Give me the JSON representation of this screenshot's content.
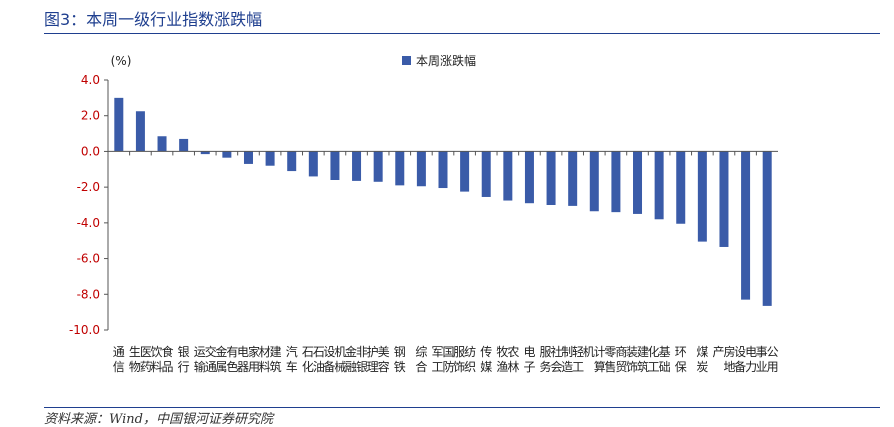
{
  "figure": {
    "title": "图3：本周一级行业指数涨跌幅",
    "source": "资料来源：Wind，中国银河证券研究院"
  },
  "colors": {
    "bar": "#3a5ba8",
    "title": "#1f3f8f",
    "axis_text": "#c00000"
  },
  "chart_data": {
    "type": "bar",
    "unit_label": "(%)",
    "legend": [
      "本周涨跌幅"
    ],
    "legend_position": "top-center",
    "ylim": [
      -10,
      4
    ],
    "yticks": [
      "4.0",
      "2.0",
      "0.0",
      "-2.0",
      "-4.0",
      "-6.0",
      "-8.0",
      "-10.0"
    ],
    "grid": false,
    "categories": [
      "通信",
      "医药生物",
      "食品饮料",
      "银行",
      "交通运输",
      "有色金属",
      "家用电器",
      "建筑材料",
      "汽车",
      "石油石化",
      "机械设备",
      "非银金融",
      "美容护理",
      "钢铁",
      "综合",
      "国防军工",
      "纺织服饰",
      "传媒",
      "农林牧渔",
      "电子",
      "社会服务",
      "轻工制造",
      "计算机",
      "商贸零售",
      "建筑装饰",
      "基础化工",
      "环保",
      "煤炭",
      "房地产",
      "电力设备",
      "公用事业"
    ],
    "series": [
      {
        "name": "本周涨跌幅",
        "values": [
          3.0,
          2.25,
          0.85,
          0.7,
          -0.15,
          -0.35,
          -0.7,
          -0.8,
          -1.1,
          -1.4,
          -1.6,
          -1.65,
          -1.7,
          -1.9,
          -1.95,
          -2.05,
          -2.25,
          -2.55,
          -2.75,
          -2.9,
          -3.0,
          -3.05,
          -3.35,
          -3.4,
          -3.5,
          -3.8,
          -4.05,
          -5.05,
          -5.35,
          -8.3,
          -8.65
        ]
      }
    ]
  }
}
